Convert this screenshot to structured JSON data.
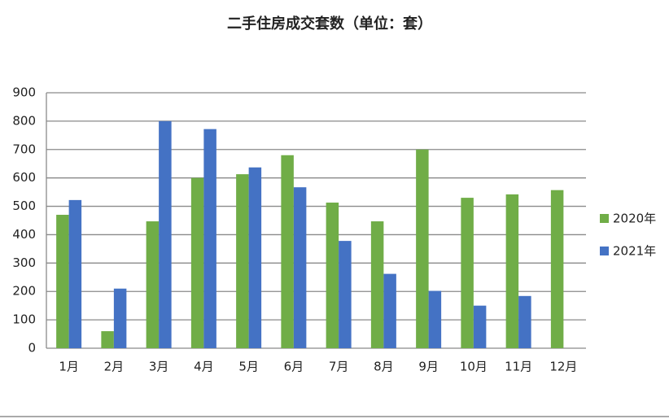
{
  "chart_data": {
    "type": "bar",
    "title": "二手住房成交套数（单位：套）",
    "categories": [
      "1月",
      "2月",
      "3月",
      "4月",
      "5月",
      "6月",
      "7月",
      "8月",
      "9月",
      "10月",
      "11月",
      "12月"
    ],
    "series": [
      {
        "name": "2020年",
        "color": "#70ad47",
        "values": [
          470,
          60,
          447,
          600,
          613,
          680,
          513,
          447,
          700,
          530,
          542,
          557
        ]
      },
      {
        "name": "2021年",
        "color": "#4472c4",
        "values": [
          522,
          210,
          800,
          772,
          637,
          567,
          378,
          262,
          202,
          150,
          184,
          null
        ]
      }
    ],
    "ylim": [
      0,
      900
    ],
    "yticks": [
      0,
      100,
      200,
      300,
      400,
      500,
      600,
      700,
      800,
      900
    ],
    "grid": true,
    "legend": "right"
  }
}
